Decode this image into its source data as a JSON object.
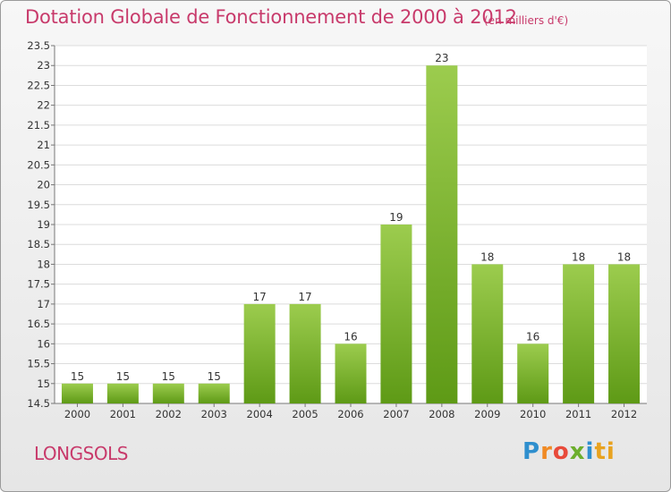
{
  "header": {
    "title": "Dotation Globale de Fonctionnement de 2000 à 2012",
    "subtitle": "(en milliers d'€)"
  },
  "footer": {
    "commune": "LONGSOLS",
    "logo_letters": [
      "P",
      "r",
      "o",
      "x",
      "i",
      "ti"
    ]
  },
  "colors": {
    "accent_text": "#c83a6b",
    "bar_light": "#9ccc4e",
    "bar_dark": "#5e9a16"
  },
  "chart_data": {
    "type": "bar",
    "title": "Dotation Globale de Fonctionnement de 2000 à 2012",
    "subtitle": "(en milliers d'€)",
    "categories": [
      "2000",
      "2001",
      "2002",
      "2003",
      "2004",
      "2005",
      "2006",
      "2007",
      "2008",
      "2009",
      "2010",
      "2011",
      "2012"
    ],
    "values": [
      15,
      15,
      15,
      15,
      17,
      17,
      16,
      19,
      23,
      18,
      16,
      18,
      18
    ],
    "data_labels": [
      "15",
      "15",
      "15",
      "15",
      "17",
      "17",
      "16",
      "19",
      "23",
      "18",
      "16",
      "18",
      "18"
    ],
    "ylim": [
      14.5,
      23.5
    ],
    "yticks": [
      "14.5",
      "15",
      "15.5",
      "16",
      "16.5",
      "17",
      "17.5",
      "18",
      "18.5",
      "19",
      "19.5",
      "20",
      "20.5",
      "21",
      "21.5",
      "22",
      "22.5",
      "23",
      "23.5"
    ],
    "ytick_values": [
      14.5,
      15,
      15.5,
      16,
      16.5,
      17,
      17.5,
      18,
      18.5,
      19,
      19.5,
      20,
      20.5,
      21,
      21.5,
      22,
      22.5,
      23,
      23.5
    ],
    "grid": true,
    "xlabel": "",
    "ylabel": ""
  }
}
